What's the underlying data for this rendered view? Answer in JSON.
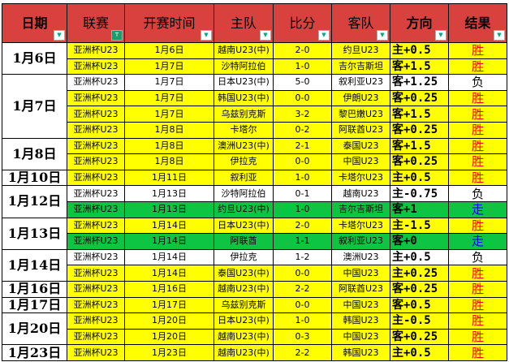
{
  "headers": [
    "日期",
    "联赛",
    "开赛时间",
    "主队",
    "比分",
    "客队",
    "方向",
    "结果"
  ],
  "colors": {
    "header": "#d9413f",
    "win": "#ff0000",
    "lose": "#000000",
    "push": "#0000ff",
    "yellow": "#ffff00",
    "green": "#0dc443"
  },
  "groups": [
    {
      "date": "1月6日",
      "rows": [
        [
          "亚洲杯U23",
          "1月6日",
          "越南U23(中)",
          "2-0",
          "约旦U23",
          "主+0.5",
          "胜",
          "y"
        ],
        [
          "亚洲杯U23",
          "1月7日",
          "沙特阿拉伯",
          "1-0",
          "吉尔吉斯坦",
          "客+1.5",
          "胜",
          "y"
        ]
      ]
    },
    {
      "date": "1月7日",
      "rows": [
        [
          "亚洲杯U23",
          "1月7日",
          "日本U23(中)",
          "5-0",
          "叙利亚U23",
          "客+1.25",
          "负",
          "w"
        ],
        [
          "亚洲杯U23",
          "1月7日",
          "韩国U23(中)",
          "0-0",
          "伊朗U23",
          "客+0.25",
          "胜",
          "y"
        ],
        [
          "亚洲杯U23",
          "1月7日",
          "乌兹别克斯",
          "3-2",
          "黎巴嫩U23",
          "客+1.5",
          "胜",
          "y"
        ],
        [
          "亚洲杯U23",
          "1月8日",
          "卡塔尔",
          "0-2",
          "阿联酋U23",
          "客+0.25",
          "胜",
          "y"
        ]
      ]
    },
    {
      "date": "1月8日",
      "rows": [
        [
          "亚洲杯U23",
          "1月8日",
          "澳洲U23(中)",
          "2-1",
          "泰国U23",
          "客+1.5",
          "胜",
          "y"
        ],
        [
          "亚洲杯U23",
          "1月8日",
          "伊拉克",
          "0-0",
          "中国U23",
          "客+0.25",
          "胜",
          "y"
        ]
      ]
    },
    {
      "date": "1月10日",
      "rows": [
        [
          "亚洲杯U23",
          "1月11日",
          "叙利亚",
          "1-0",
          "卡塔尔U23",
          "主+0.5",
          "胜",
          "y"
        ]
      ]
    },
    {
      "date": "1月12日",
      "rows": [
        [
          "亚洲杯U23",
          "1月13日",
          "沙特阿拉伯",
          "0-1",
          "越南U23",
          "主-0.75",
          "负",
          "w"
        ],
        [
          "亚洲杯U23",
          "1月13日",
          "约旦U23(中)",
          "1-0",
          "吉尔吉斯坦",
          "客+1",
          "走",
          "g"
        ]
      ]
    },
    {
      "date": "1月13日",
      "rows": [
        [
          "亚洲杯U23",
          "1月14日",
          "日本U23(中)",
          "2-0",
          "卡塔尔U23",
          "主-1.5",
          "胜",
          "y"
        ],
        [
          "亚洲杯U23",
          "1月14日",
          "阿联酋",
          "1-1",
          "叙利亚U23",
          "客+0",
          "走",
          "g"
        ]
      ]
    },
    {
      "date": "1月14日",
      "rows": [
        [
          "亚洲杯U23",
          "1月14日",
          "伊拉克",
          "1-2",
          "澳洲U23",
          "主+0.5",
          "负",
          "w"
        ],
        [
          "亚洲杯U23",
          "1月14日",
          "泰国U23(中)",
          "0-0",
          "中国U23",
          "主+0.25",
          "胜",
          "y"
        ]
      ]
    },
    {
      "date": "1月16日",
      "rows": [
        [
          "亚洲杯U23",
          "1月16日",
          "越南U23(中)",
          "2-2",
          "阿联酋U23",
          "客+0.25",
          "胜",
          "y"
        ]
      ]
    },
    {
      "date": "1月17日",
      "rows": [
        [
          "亚洲杯U23",
          "1月17日",
          "乌兹别克斯",
          "0-0",
          "中国U23",
          "客+0.5",
          "胜",
          "y"
        ]
      ]
    },
    {
      "date": "1月20日",
      "rows": [
        [
          "亚洲杯U23",
          "1月20日",
          "日本U23(中)",
          "1-0",
          "韩国U23",
          "主-0.5",
          "胜",
          "y"
        ],
        [
          "亚洲杯U23",
          "1月20日",
          "越南U23(中)",
          "0-3",
          "中国U23",
          "客+0.25",
          "胜",
          "y"
        ]
      ]
    },
    {
      "date": "1月23日",
      "rows": [
        [
          "亚洲杯U23",
          "1月23日",
          "越南U23(中)",
          "2-2",
          "韩国U23",
          "主+0.5",
          "胜",
          "y"
        ]
      ]
    }
  ]
}
